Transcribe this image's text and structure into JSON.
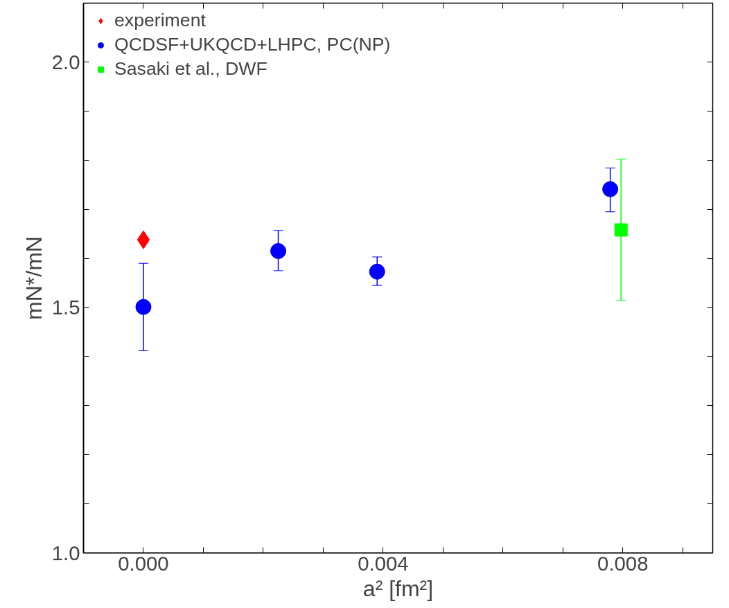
{
  "chart_data": {
    "type": "scatter",
    "xlabel": "a² [fm²]",
    "ylabel": "mN*/mN",
    "xlim": [
      -0.001,
      0.0095
    ],
    "ylim": [
      1.0,
      2.12
    ],
    "xticks": [
      {
        "value": 0,
        "label": "0.000"
      },
      {
        "value": 0.001,
        "label": null
      },
      {
        "value": 0.002,
        "label": null
      },
      {
        "value": 0.003,
        "label": null
      },
      {
        "value": 0.004,
        "label": "0.004"
      },
      {
        "value": 0.005,
        "label": null
      },
      {
        "value": 0.006,
        "label": null
      },
      {
        "value": 0.007,
        "label": null
      },
      {
        "value": 0.008,
        "label": "0.008"
      },
      {
        "value": 0.009,
        "label": null
      }
    ],
    "yticks": [
      {
        "value": 1.0,
        "label": "1.0"
      },
      {
        "value": 1.1,
        "label": null
      },
      {
        "value": 1.2,
        "label": null
      },
      {
        "value": 1.3,
        "label": null
      },
      {
        "value": 1.4,
        "label": null
      },
      {
        "value": 1.5,
        "label": "1.5"
      },
      {
        "value": 1.6,
        "label": null
      },
      {
        "value": 1.7,
        "label": null
      },
      {
        "value": 1.8,
        "label": null
      },
      {
        "value": 1.9,
        "label": null
      },
      {
        "value": 2.0,
        "label": "2.0"
      }
    ],
    "grid": false,
    "legend": "top left",
    "series": [
      {
        "name": "experiment",
        "color": "#ff0000",
        "marker": "diamond",
        "x": [
          0.0
        ],
        "values": [
          1.638
        ]
      },
      {
        "name": "QCDSF+UKQCD+LHPC, PC(NP)",
        "color": "#0000ff",
        "marker": "circle",
        "x": [
          0.0,
          0.00225,
          0.0039,
          0.00779
        ],
        "values": [
          1.501,
          1.615,
          1.573,
          1.741
        ],
        "errors": [
          [
            1.412,
            1.59
          ],
          [
            1.575,
            1.657
          ],
          [
            1.545,
            1.603
          ],
          [
            1.695,
            1.784
          ]
        ]
      },
      {
        "name": "Sasaki et al., DWF",
        "color": "#00ff00",
        "marker": "square",
        "x": [
          0.00797
        ],
        "values": [
          1.658
        ],
        "errors": [
          [
            1.514,
            1.802
          ]
        ]
      }
    ]
  }
}
